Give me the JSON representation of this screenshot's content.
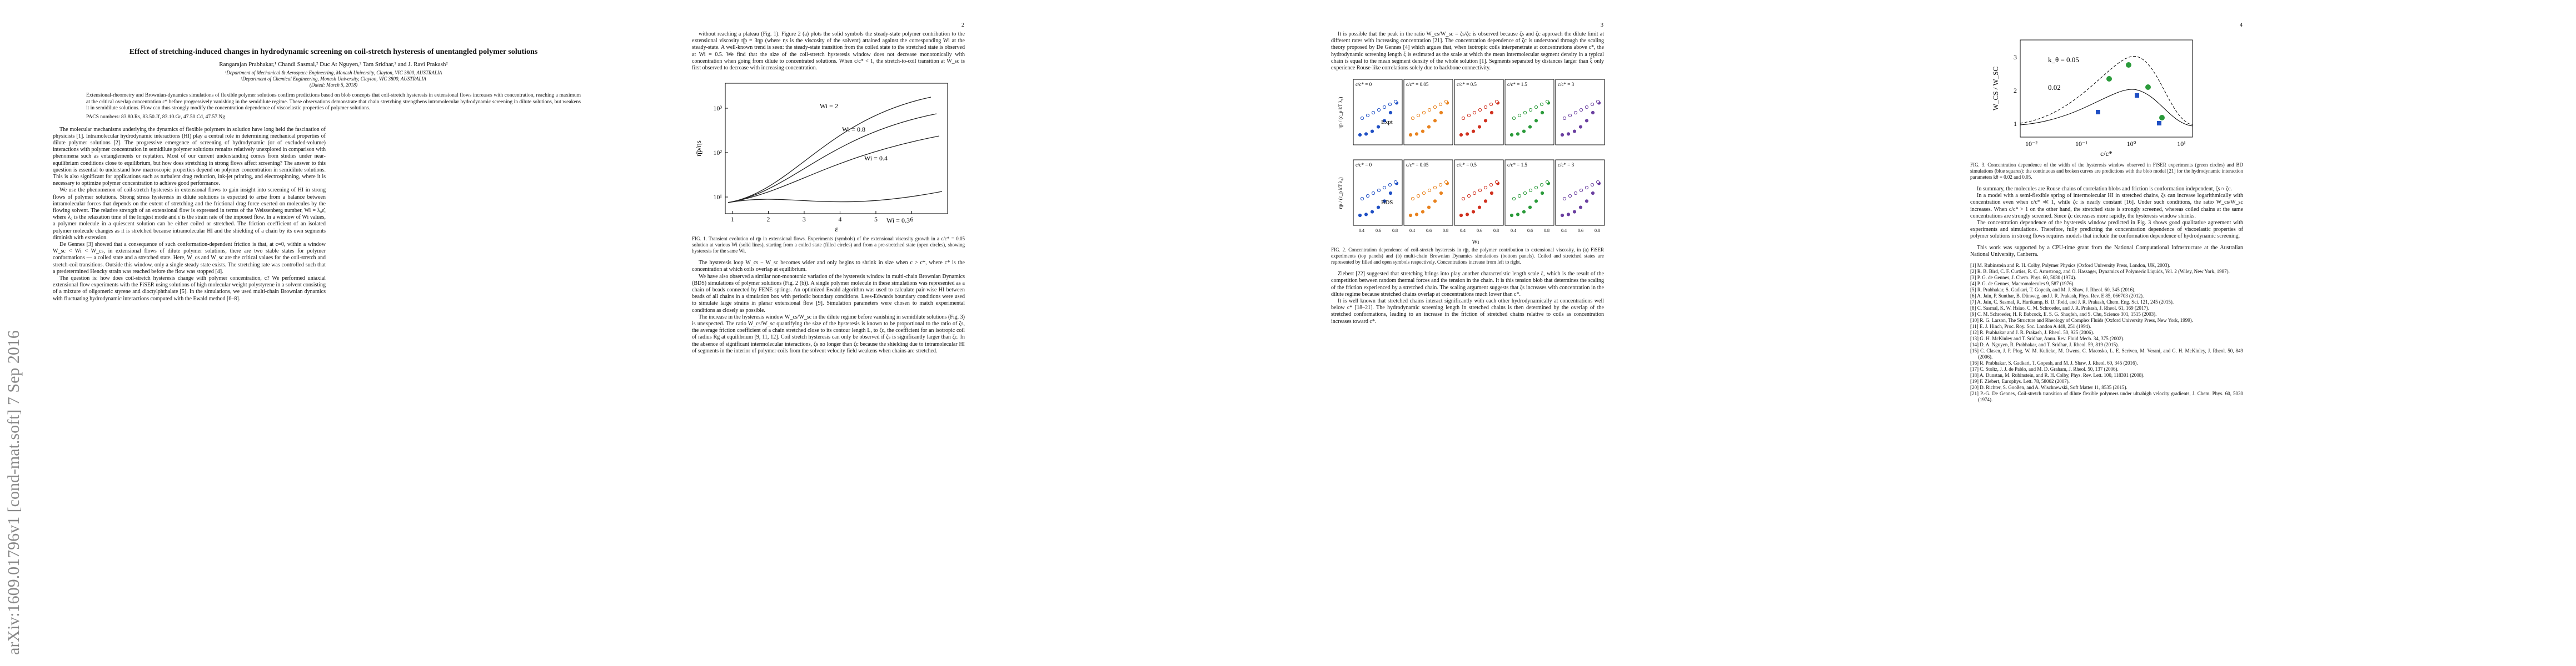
{
  "stamp": "arXiv:1609.01796v1  [cond-mat.soft]  7 Sep 2016",
  "title": "Effect of stretching-induced changes in hydrodynamic screening on coil-stretch hysteresis of unentangled polymer solutions",
  "authors": "Rangarajan Prabhakar,¹ Chandi Sasmal,² Duc At Nguyen,² Tam Sridhar,² and J. Ravi Prakash²",
  "affiliations": [
    "¹Department of Mechanical & Aerospace Engineering, Monash University, Clayton, VIC 3800, AUSTRALIA",
    "²Department of Chemical Engineering, Monash University, Clayton, VIC 3800, AUSTRALIA",
    "(Dated: March 5, 2018)"
  ],
  "abstract": "Extensional-rheometry and Brownian-dynamics simulations of flexible polymer solutions confirm predictions based on blob concepts that coil-stretch hysteresis in extensional flows increases with concentration, reaching a maximum at the critical overlap concentration c* before progressively vanishing in the semidilute regime. These observations demonstrate that chain stretching strengthens intramolecular hydrodynamic screening in dilute solutions, but weakens it in semidilute solutions. Flow can thus strongly modify the concentration dependence of viscoelastic properties of polymer solutions.",
  "pacs": "PACS numbers: 83.80.Rs, 83.50.Jf, 83.10.Gr, 47.50.Cd, 47.57.Ng",
  "pages": [
    {
      "number": "",
      "paragraphs": [
        "The molecular mechanisms underlying the dynamics of flexible polymers in solution have long held the fascination of physicists [1]. Intramolecular hydrodynamic interactions (HI) play a central role in determining mechanical properties of dilute polymer solutions [2]. The progressive emergence of screening of hydrodynamic (or of excluded-volume) interactions with polymer concentration in semidilute polymer solutions remains relatively unexplored in comparison with phenomena such as entanglements or reptation. Most of our current understanding comes from studies under near-equilibrium conditions close to equilibrium, but how does stretching in strong flows affect screening? The answer to this question is essential to understand how macroscopic properties depend on polymer concentration in semidilute solutions. This is also significant for applications such as turbulent drag reduction, ink-jet printing, and electrospinning, where it is necessary to optimize polymer concentration to achieve good performance.",
        "We use the phenomenon of coil-stretch hysteresis in extensional flows to gain insight into screening of HI in strong flows of polymer solutions. Strong stress hysteresis in dilute solutions is expected to arise from a balance between intramolecular forces that depends on the extent of stretching and the frictional drag force exerted on molecules by the flowing solvent. The relative strength of an extensional flow is expressed in terms of the Weissenberg number, Wi = λ₀ε̇, where λ₀ is the relaxation time of the longest mode and ε̇ is the strain rate of the imposed flow. In a window of Wi values, a polymer molecule in a quiescent solution can be either coiled or stretched. The friction coefficient of an isolated polymer molecule changes as it is stretched because intramolecular HI and the shielding of a chain by its own segments diminish with extension.",
        "De Gennes [3] showed that a consequence of such conformation-dependent friction is that, at c=0, within a window W_sc < Wi < W_cs, in extensional flows of dilute polymer solutions, there are two stable states for polymer conformations — a coiled state and a stretched state. Here, W_cs and W_sc are the critical values for the coil-stretch and stretch-coil transitions. Outside this window, only a single steady state exists. The stretching rate was controlled such that a predetermined Hencky strain was reached before the flow was stopped [4].",
        "The question is: how does coil-stretch hysteresis change with polymer concentration, c? We performed uniaxial extensional flow experiments with the FiSER using solutions of high molecular weight polystyrene in a solvent consisting of a mixture of oligomeric styrene and dioctylphthalate [5]. In the simulations, we used multi-chain Brownian dynamics with fluctuating hydrodynamic interactions computed with the Ewald method [6–8]."
      ]
    },
    {
      "number": "2",
      "paragraphs": [
        "without reaching a plateau (Fig. 1). Figure 2 (a) plots the solid symbols the steady-state polymer contribution to the extensional viscosity η̄p = 3ηp (where ηs is the viscosity of the solvent) attained against the corresponding Wi at the steady-state. A well-known trend is seen: the steady-state transition from the coiled state to the stretched state is observed at Wi = 0.5. We find that the size of the coil-stretch hysteresis window does not decrease monotonically with concentration when going from dilute to concentrated solutions. When c/c* < 1, the stretch-to-coil transition at W_sc is first observed to decrease with increasing concentration.",
        "The hysteresis loop W_cs − W_sc becomes wider and only begins to shrink in size when c > c*, where c* is the concentration at which coils overlap at equilibrium.",
        "We have also observed a similar non-monotonic variation of the hysteresis window in multi-chain Brownian Dynamics (BDS) simulations of polymer solutions (Fig. 2 (b)). A single polymer molecule in these simulations was represented as a chain of beads connected by FENE springs. An optimized Ewald algorithm was used to calculate pair-wise HI between beads of all chains in a simulation box with periodic boundary conditions. Lees-Edwards boundary conditions were used to simulate large strains in planar extensional flow [9]. Simulation parameters were chosen to match experimental conditions as closely as possible.",
        "The increase in the hysteresis window W_cs/W_sc in the dilute regime before vanishing in semidilute solutions (Fig. 3) is unexpected. The ratio W_cs/W_sc quantifying the size of the hysteresis is known to be proportional to the ratio of ζs, the average friction coefficient of a chain stretched close to its contour length L, to ζc, the coefficient for an isotropic coil of radius Rg at equilibrium [9, 11, 12]. Coil stretch hysteresis can only be observed if ζs is significantly larger than ζc. In the absence of significant intermolecular interactions, ζs no longer than ζc because the shielding due to intramolecular HI of segments in the interior of polymer coils from the solvent velocity field weakens when chains are stretched."
      ]
    },
    {
      "number": "3",
      "paragraphs": [
        "It is possible that the peak in the ratio W_cs/W_sc = ζs/ζc is observed because ζs and ζc approach the dilute limit at different rates with increasing concentration [21]. The concentration dependence of ζc is understood through the scaling theory proposed by De Gennes [4] which argues that, when isotropic coils interpenetrate at concentrations above c*, the hydrodynamic screening length ξ is estimated as the scale at which the mean intermolecular segment density in a typical chain is equal to the mean segment density of the whole solution [1]. Segments separated by distances larger than ξ only experience Rouse-like correlations solely due to backbone connectivity.",
        "Ziebert [22] suggested that stretching brings into play another characteristic length scale ξ, which is the result of the competition between random thermal forces and the tension in the chain. It is this tension blob that determines the scaling of the friction experienced by a stretched chain. The scaling argument suggests that ζs increases with concentration in the dilute regime because stretched chains overlap at concentrations much lower than c*.",
        "It is well known that stretched chains interact significantly with each other hydrodynamically at concentrations well below c* [18–21]. The hydrodynamic screening length in stretched chains is then determined by the overlap of the stretched conformations, leading to an increase in the friction of stretched chains relative to coils as concentration increases toward c*."
      ]
    },
    {
      "number": "4",
      "paragraphs": [
        "In summary, the molecules are Rouse chains of correlation blobs and friction is conformation independent, ζs ≈ ζc.",
        "In a model with a semi-flexible spring of intermolecular HI in stretched chains, ζs can increase logarithmically with concentration even when c/c* ≪ 1, while ζc is nearly constant [16]. Under such conditions, the ratio W_cs/W_sc increases. When c/c* > 1 on the other hand, the stretched state is strongly screened, whereas coiled chains at the same concentrations are strongly screened. Since ζc decreases more rapidly, the hysteresis window shrinks.",
        "The concentration dependence of the hysteresis window predicted in Fig. 3 shows good qualitative agreement with experiments and simulations. Therefore, fully predicting the concentration dependence of viscoelastic properties of polymer solutions in strong flows requires models that include the conformation dependence of hydrodynamic screening."
      ],
      "acknowledgement": "This work was supported by a CPU-time grant from the National Computational Infrastructure at the Australian National University, Canberra.",
      "references": [
        "[1] M. Rubinstein and R. H. Colby, Polymer Physics (Oxford University Press, London, UK, 2003).",
        "[2] R. B. Bird, C. F. Curtiss, R. C. Armstrong, and O. Hassager, Dynamics of Polymeric Liquids, Vol. 2 (Wiley, New York, 1987).",
        "[3] P. G. de Gennes, J. Chem. Phys. 60, 5030 (1974).",
        "[4] P. G. de Gennes, Macromolecules 9, 587 (1976).",
        "[5] R. Prabhakar, S. Gadkari, T. Gopesh, and M. J. Shaw, J. Rheol. 60, 345 (2016).",
        "[6] A. Jain, P. Sunthar, B. Dünweg, and J. R. Prakash, Phys. Rev. E 85, 066703 (2012).",
        "[7] A. Jain, C. Sasmal, R. Hartkamp, B. D. Todd, and J. R. Prakash, Chem. Eng. Sci. 121, 245 (2015).",
        "[8] C. Sasmal, K. W. Hsiao, C. M. Schroeder, and J. R. Prakash, J. Rheol. 61, 169 (2017).",
        "[9] C. M. Schroeder, H. P. Babcock, E. S. G. Shaqfeh, and S. Chu, Science 301, 1515 (2003).",
        "[10] R. G. Larson, The Structure and Rheology of Complex Fluids (Oxford University Press, New York, 1999).",
        "[11] E. J. Hinch, Proc. Roy. Soc. London A 448, 251 (1994).",
        "[12] R. Prabhakar and J. R. Prakash, J. Rheol. 50, 925 (2006).",
        "[13] G. H. McKinley and T. Sridhar, Annu. Rev. Fluid Mech. 34, 375 (2002).",
        "[14] D. A. Nguyen, R. Prabhakar, and T. Sridhar, J. Rheol. 59, 819 (2015).",
        "[15] C. Clasen, J. P. Plog, W. M. Kulicke, M. Owens, C. Macosko, L. E. Scriven, M. Verani, and G. H. McKinley, J. Rheol. 50, 849 (2006).",
        "[16] R. Prabhakar, S. Gadkari, T. Gopesh, and M. J. Shaw, J. Rheol. 60, 345 (2016).",
        "[17] C. Stoltz, J. J. de Pablo, and M. D. Graham, J. Rheol. 50, 137 (2006).",
        "[18] A. Dunstan, M. Rubinstein, and R. H. Colby, Phys. Rev. Lett. 100, 118301 (2008).",
        "[19] F. Ziebert, Europhys. Lett. 78, 58002 (2007).",
        "[20] D. Richter, S. Gooßen, and A. Wischnewski, Soft Matter 11, 8535 (2015).",
        "[21] P.-G. De Gennes, Coil-stretch transition of dilute flexible polymers under ultrahigh velocity gradients, J. Chem. Phys. 60, 5030 (1974)."
      ]
    }
  ],
  "fig1": {
    "ylabel": "η̄p/ηs",
    "xlabel": "ε",
    "xticks": [
      "1",
      "2",
      "3",
      "4",
      "5",
      "6"
    ],
    "yticks": [
      "10¹",
      "10²",
      "10³"
    ],
    "curves": [
      "Wi = 2",
      "Wi = 0.8",
      "Wi = 0.4",
      "Wi = 0.3"
    ],
    "caption": "FIG. 1. Transient evolution of η̄p in extensional flows. Experiments (symbols) of the extensional viscosity growth in a c/c* = 0.05 solution at various Wi (solid lines), starting from a coiled state (filled circles) and from a pre-stretched state (open circles), showing hysteresis for the same Wi."
  },
  "fig2": {
    "rows": [
      {
        "tag": "Expt",
        "panels": [
          "c/c* = 0",
          "c/c* = 0.05",
          "c/c* = 0.5",
          "c/c* = 1.5",
          "c/c* = 3"
        ]
      },
      {
        "tag": "BDS",
        "panels": [
          "c/c* = 0",
          "c/c* = 0.05",
          "c/c* = 0.5",
          "c/c* = 1.5",
          "c/c* = 3"
        ]
      }
    ],
    "ylabel": "η̄p / (c_p kT λ₀)",
    "xlabel": "Wi",
    "xticks": [
      "0.4",
      "0.6",
      "0.8"
    ],
    "caption": "FIG. 2. Concentration dependence of coil-stretch hysteresis in η̄p, the polymer contribution to extensional viscosity, in (a) FiSER experiments (top panels) and (b) multi-chain Brownian Dynamics simulations (bottom panels). Coiled and stretched states are represented by filled and open symbols respectively. Concentrations increase from left to right."
  },
  "fig3": {
    "ylabel": "W_CS / W_SC",
    "xlabel": "c/c*",
    "labels": [
      "k_θ = 0.05",
      "0.02"
    ],
    "xticks": [
      "10⁻²",
      "10⁻¹",
      "10⁰",
      "10¹"
    ],
    "yticks": [
      "1",
      "2",
      "3"
    ],
    "caption": "FIG. 3. Concentration dependence of the width of the hysteresis window observed in FiSER experiments (green circles) and BD simulations (blue squares): the continuous and broken curves are predictions with the blob model [21] for the hydrodynamic interaction parameters kθ = 0.02 and 0.05."
  }
}
